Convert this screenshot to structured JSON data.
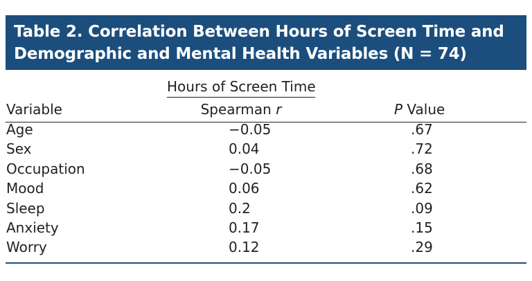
{
  "table": {
    "title": [
      "Table 2. Correlation Between Hours of Screen Time and",
      "Demographic and Mental Health Variables (N = 74)"
    ],
    "spanner": "Hours of Screen Time",
    "columns": [
      {
        "label": "Variable"
      },
      {
        "label": "Spearman",
        "symbol": "r"
      },
      {
        "symbol": "P",
        "label": "Value"
      }
    ],
    "rows": [
      [
        "Age",
        "−0.05",
        ".67"
      ],
      [
        "Sex",
        "0.04",
        ".72"
      ],
      [
        "Occupation",
        "−0.05",
        ".68"
      ],
      [
        "Mood",
        "0.06",
        ".62"
      ],
      [
        "Sleep",
        "0.2",
        ".09"
      ],
      [
        "Anxiety",
        "0.17",
        ".15"
      ],
      [
        "Worry",
        "0.12",
        ".29"
      ]
    ]
  }
}
